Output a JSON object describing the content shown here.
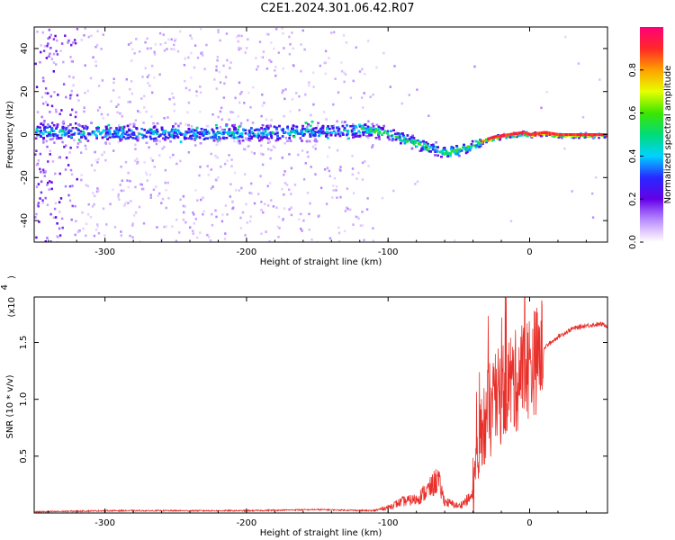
{
  "title": "C2E1.2024.301.06.42.R07",
  "chart_data": [
    {
      "type": "heatmap",
      "xlabel": "Height of straight line (km)",
      "ylabel": "Frequency (Hz)",
      "xlim": [
        -350,
        55
      ],
      "ylim": [
        -50,
        50
      ],
      "xticks": [
        -300,
        -200,
        -100,
        0
      ],
      "yticks": [
        -40,
        -20,
        0,
        20,
        40
      ],
      "colorbar": {
        "label": "Normalized spectral amplitude",
        "range": [
          0,
          1
        ],
        "ticks": [
          "0.0",
          "0.2",
          "0.4",
          "0.6",
          "0.8"
        ]
      },
      "ridge": {
        "x": [
          -350,
          -300,
          -250,
          -200,
          -150,
          -120,
          -100,
          -80,
          -60,
          -45,
          -35,
          -25,
          -15,
          -5,
          0,
          10,
          20,
          40,
          55
        ],
        "y": [
          2,
          1,
          1,
          1,
          2,
          3,
          1,
          -4,
          -8,
          -6,
          -3,
          -1,
          0,
          1,
          0,
          1,
          0,
          0,
          0
        ]
      }
    },
    {
      "type": "line",
      "xlabel": "Height of straight line (km)",
      "ylabel": "SNR (10 * v/v)",
      "yscale_label": "(x10",
      "yscale_exp": "4",
      "xlim": [
        -350,
        55
      ],
      "ylim": [
        0,
        1.9
      ],
      "xticks": [
        -300,
        -200,
        -100,
        0
      ],
      "yticks": [
        "0.5",
        "1.0",
        "1.5"
      ],
      "line_color": "#e8302b",
      "series": [
        {
          "x": [
            -350,
            -300,
            -250,
            -200,
            -150,
            -110,
            -100,
            -90,
            -80,
            -70,
            -65,
            -60,
            -50,
            -40,
            -35,
            -30,
            -25,
            -20,
            -15,
            -10,
            -5,
            0,
            5,
            10,
            20,
            30,
            40,
            50,
            55
          ],
          "y": [
            0.01,
            0.02,
            0.02,
            0.02,
            0.03,
            0.02,
            0.05,
            0.1,
            0.12,
            0.22,
            0.3,
            0.1,
            0.06,
            0.15,
            0.6,
            0.85,
            0.95,
            1.05,
            1.15,
            1.15,
            1.25,
            1.3,
            1.35,
            1.45,
            1.55,
            1.62,
            1.65,
            1.66,
            1.65
          ]
        }
      ]
    }
  ]
}
